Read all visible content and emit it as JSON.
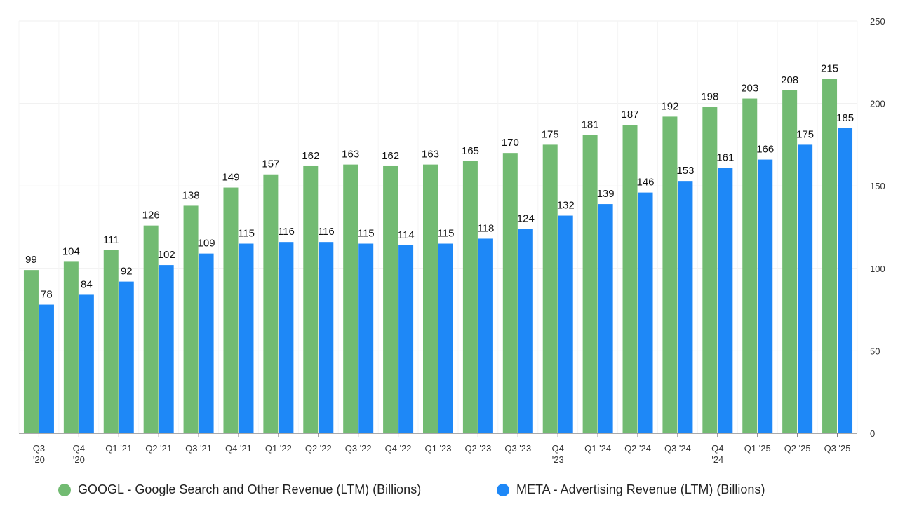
{
  "chart_data": {
    "type": "bar",
    "categories": [
      "Q3 '20",
      "Q4 '20",
      "Q1 '21",
      "Q2 '21",
      "Q3 '21",
      "Q4 '21",
      "Q1 '22",
      "Q2 '22",
      "Q3 '22",
      "Q4 '22",
      "Q1 '23",
      "Q2 '23",
      "Q3 '23",
      "Q4 '23",
      "Q1 '24",
      "Q2 '24",
      "Q3 '24",
      "Q4 '24",
      "Q1 '25",
      "Q2 '25",
      "Q3 '25"
    ],
    "series": [
      {
        "name": "GOOGL - Google Search and Other Revenue (LTM) (Billions)",
        "color": "#72bb72",
        "values": [
          99,
          104,
          111,
          126,
          138,
          149,
          157,
          162,
          163,
          162,
          163,
          165,
          170,
          175,
          181,
          187,
          192,
          198,
          203,
          208,
          215
        ]
      },
      {
        "name": "META - Advertising Revenue (LTM) (Billions)",
        "color": "#1e88f7",
        "values": [
          78,
          84,
          92,
          102,
          109,
          115,
          116,
          116,
          115,
          114,
          115,
          118,
          124,
          132,
          139,
          146,
          153,
          161,
          166,
          175,
          185
        ]
      }
    ],
    "y_ticks": [
      "0",
      "50",
      "100",
      "150",
      "200",
      "250"
    ],
    "ylim": [
      0,
      250
    ],
    "y_axis_side": "right",
    "grid": true,
    "legend_position": "bottom"
  }
}
